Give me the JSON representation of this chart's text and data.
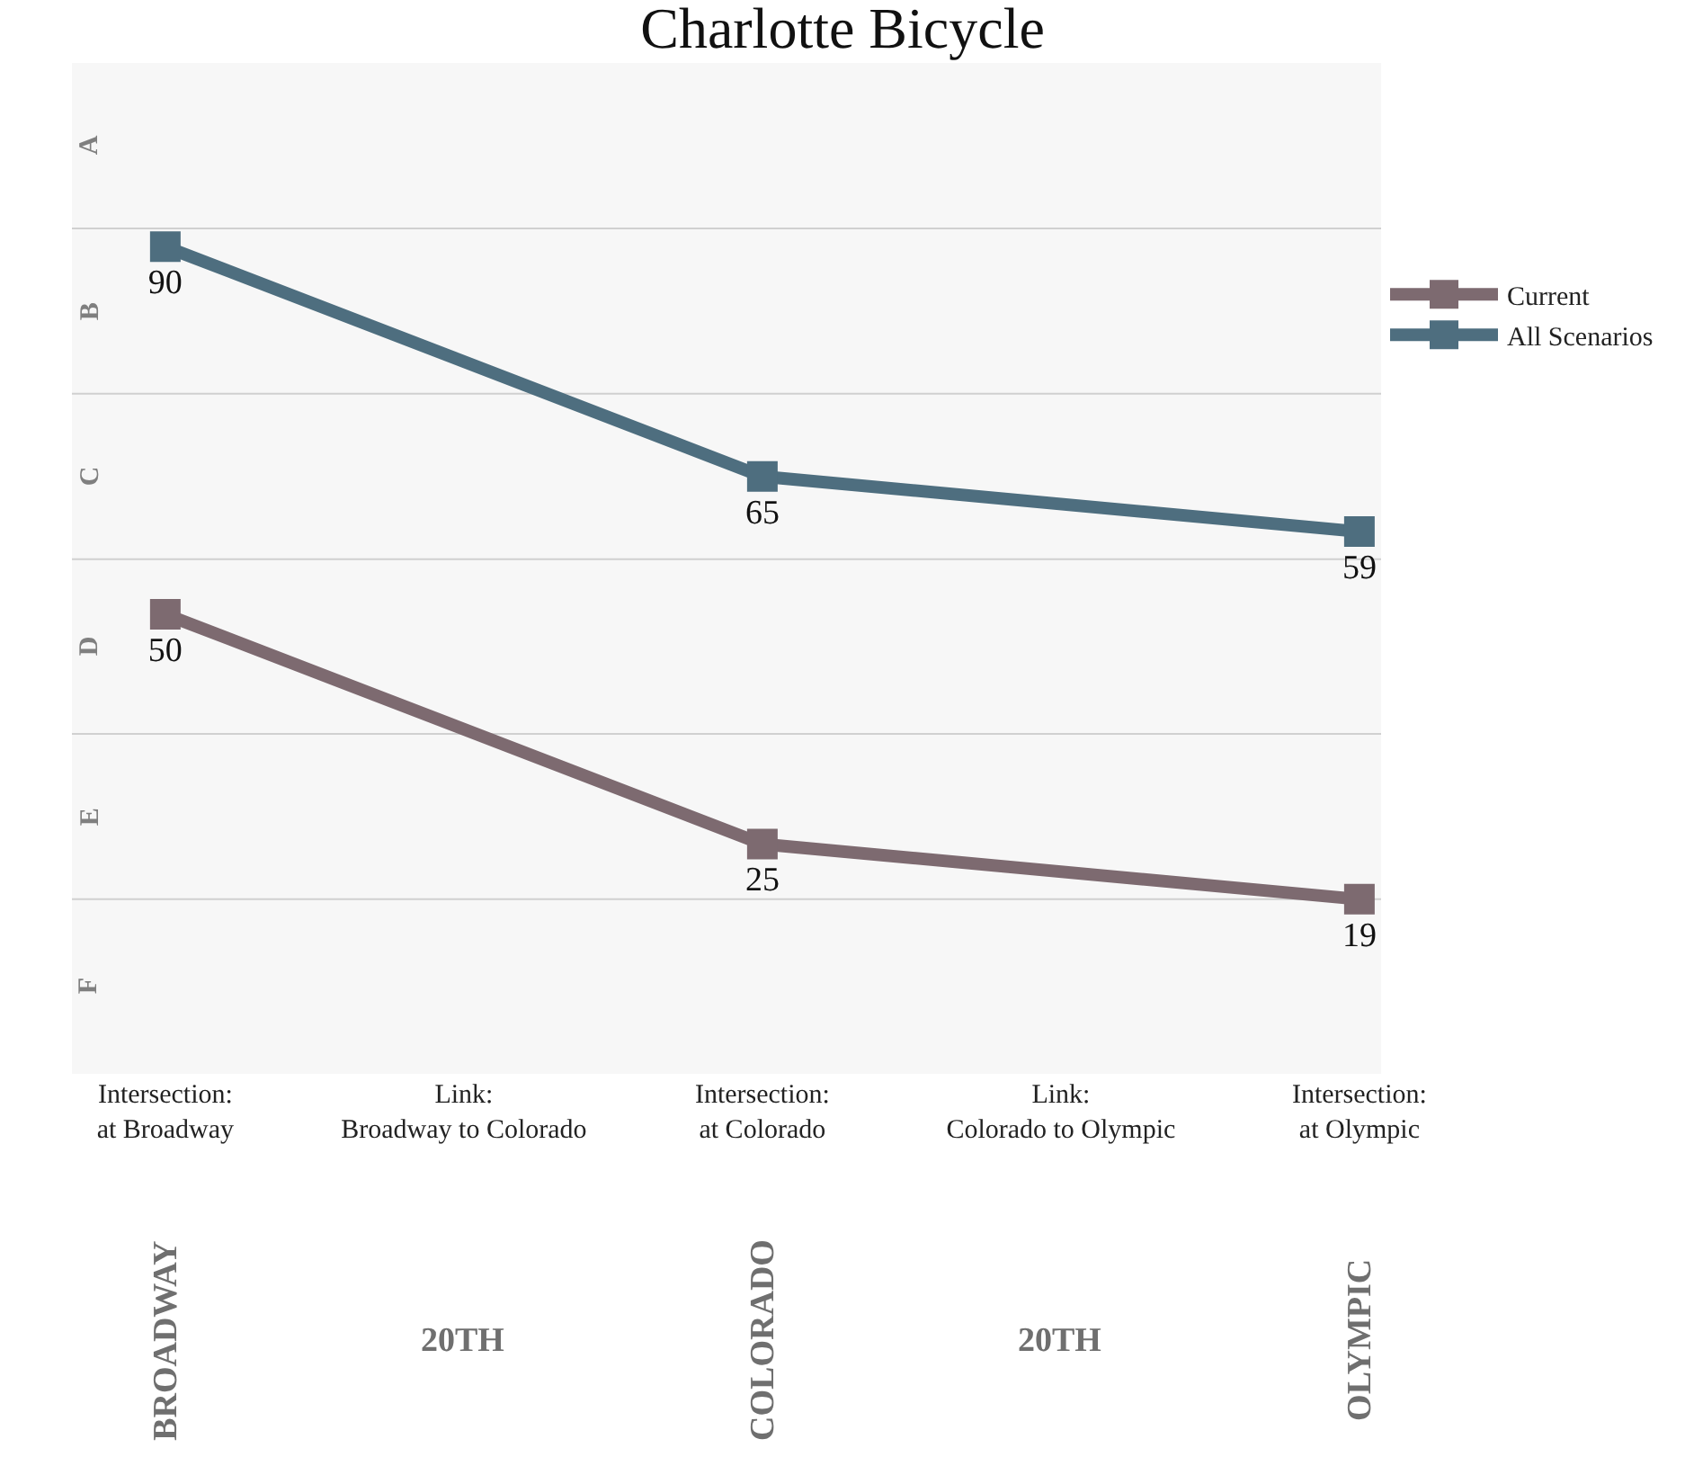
{
  "chart_data": {
    "type": "line",
    "title": "Charlotte Bicycle",
    "categories": [
      "Intersection:\nat Broadway",
      "Link:\nBroadway to Colorado",
      "Intersection:\nat Colorado",
      "Link:\nColorado to Olympic",
      "Intersection:\nat Olympic"
    ],
    "series": [
      {
        "name": "Current",
        "color": "#7d6a70",
        "values": [
          50,
          null,
          25,
          null,
          19
        ]
      },
      {
        "name": "All Scenarios",
        "color": "#4e6e7f",
        "values": [
          90,
          null,
          65,
          null,
          59
        ]
      }
    ],
    "bands": [
      {
        "axis": "y",
        "from": 92,
        "to": 110,
        "label": "A",
        "color": "#7f7f7f"
      },
      {
        "axis": "y",
        "from": 74,
        "to": 92,
        "label": "B",
        "color": "#7f7f7f"
      },
      {
        "axis": "y",
        "from": 56,
        "to": 74,
        "label": "C",
        "color": "#7f7f7f"
      },
      {
        "axis": "y",
        "from": 37,
        "to": 56,
        "label": "D",
        "color": "#7f7f7f"
      },
      {
        "axis": "y",
        "from": 19,
        "to": 37,
        "label": "E",
        "color": "#7f7f7f"
      },
      {
        "axis": "y",
        "from": 0,
        "to": 19,
        "label": "F",
        "color": "#7f7f7f"
      }
    ],
    "ref_lines": [
      {
        "axis": "y",
        "value": 92,
        "color": "#d0d0d0"
      },
      {
        "axis": "y",
        "value": 74,
        "color": "#d0d0d0"
      },
      {
        "axis": "y",
        "value": 56,
        "color": "#d0d0d0"
      },
      {
        "axis": "y",
        "value": 37,
        "color": "#d0d0d0"
      },
      {
        "axis": "y",
        "value": 19,
        "color": "#d0d0d0"
      }
    ],
    "annotations": [
      "BROADWAY",
      "20TH",
      "COLORADO",
      "20TH",
      "OLYMPIC"
    ],
    "data_labels": true,
    "legend": "top right",
    "tick_labels": "x",
    "marker": "square",
    "line_style": "solid"
  }
}
